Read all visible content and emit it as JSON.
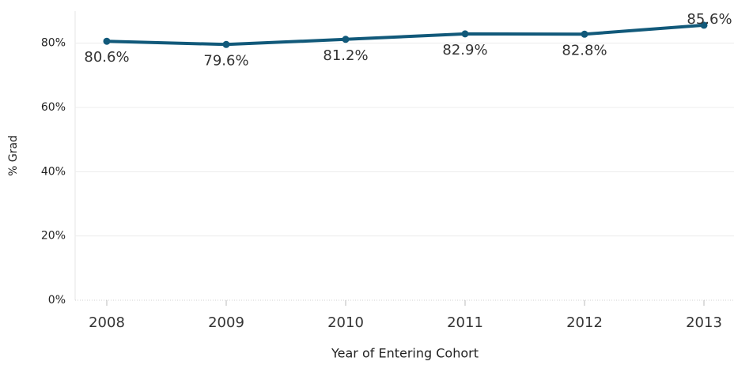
{
  "chart_data": {
    "type": "line",
    "x_label": "Year of Entering Cohort",
    "y_label": "% Grad",
    "categories": [
      "2008",
      "2009",
      "2010",
      "2011",
      "2012",
      "2013"
    ],
    "series": [
      {
        "name": "% Grad",
        "color": "#11597a",
        "values": [
          80.6,
          79.6,
          81.2,
          82.9,
          82.8,
          85.6
        ],
        "value_labels": [
          "80.6%",
          "79.6%",
          "81.2%",
          "82.9%",
          "82.8%",
          "85.6%"
        ]
      }
    ],
    "ylim": [
      0,
      90
    ],
    "yticks": [
      {
        "value": 0,
        "label": "0%"
      },
      {
        "value": 20,
        "label": "20%"
      },
      {
        "value": 40,
        "label": "40%"
      },
      {
        "value": 60,
        "label": "60%"
      },
      {
        "value": 80,
        "label": "80%"
      }
    ],
    "grid": true
  }
}
